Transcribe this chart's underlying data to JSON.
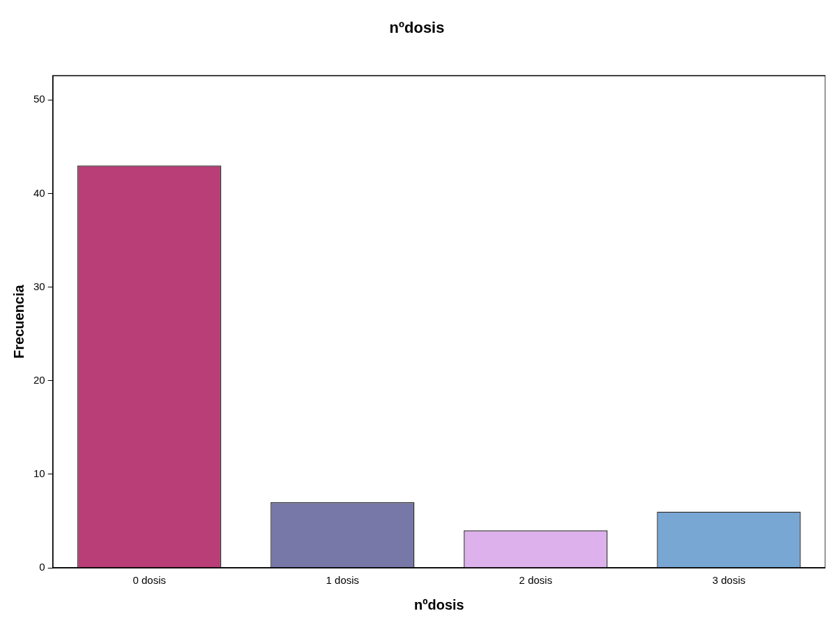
{
  "chart_data": {
    "type": "bar",
    "title": "nºdosis",
    "xlabel": "nºdosis",
    "ylabel": "Frecuencia",
    "categories": [
      "0 dosis",
      "1 dosis",
      "2 dosis",
      "3 dosis"
    ],
    "values": [
      43,
      7,
      4,
      6
    ],
    "colors": [
      "#b93d76",
      "#7777a8",
      "#dcb1ec",
      "#78a7d4"
    ],
    "ylim": [
      0,
      52.6
    ],
    "yticks": [
      0,
      10,
      20,
      30,
      40,
      50
    ],
    "grid": false,
    "legend": false
  }
}
